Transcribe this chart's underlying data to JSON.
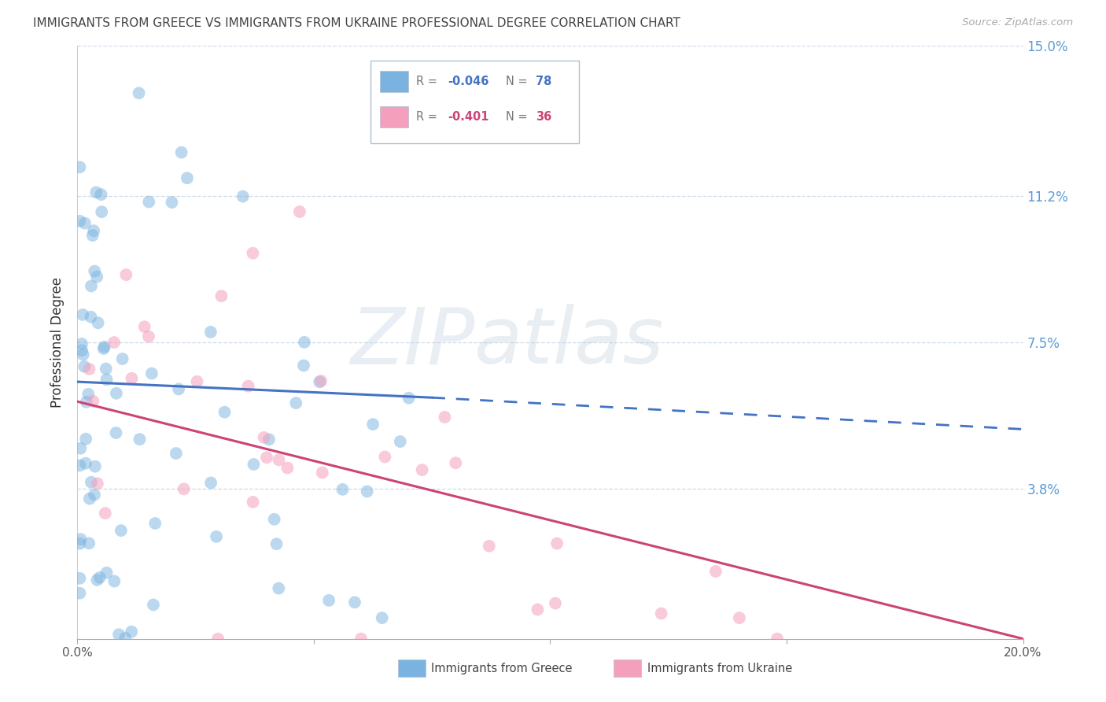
{
  "title": "IMMIGRANTS FROM GREECE VS IMMIGRANTS FROM UKRAINE PROFESSIONAL DEGREE CORRELATION CHART",
  "source": "Source: ZipAtlas.com",
  "ylabel": "Professional Degree",
  "xlim": [
    0.0,
    0.2
  ],
  "ylim": [
    0.0,
    0.15
  ],
  "yticks_right": [
    0.038,
    0.075,
    0.112,
    0.15
  ],
  "yticks_right_labels": [
    "3.8%",
    "7.5%",
    "11.2%",
    "15.0%"
  ],
  "greece_color": "#7ab3e0",
  "ukraine_color": "#f4a0bc",
  "greece_R": "-0.046",
  "greece_N": "78",
  "ukraine_R": "-0.401",
  "ukraine_N": "36",
  "watermark_zip": "ZIP",
  "watermark_atlas": "atlas",
  "background_color": "#ffffff",
  "grid_color": "#c8d8e8",
  "axis_label_color": "#5b9bd5",
  "trendline_blue": "#4472c4",
  "trendline_pink": "#cc4477",
  "legend_border_color": "#b0c0d0"
}
